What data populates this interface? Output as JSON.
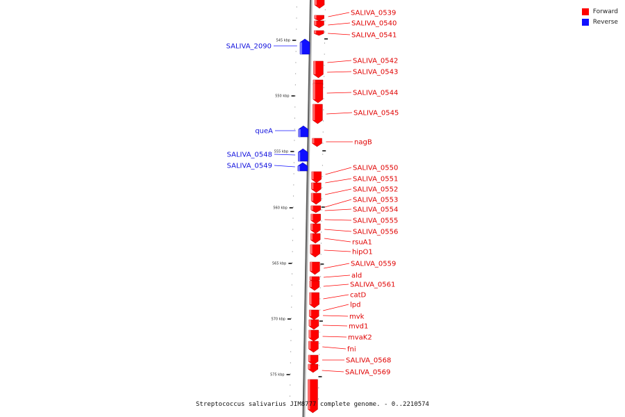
{
  "legend": {
    "forward": {
      "label": "Forward",
      "color": "#ff0000"
    },
    "reverse": {
      "label": "Reverse",
      "color": "#1010ff"
    }
  },
  "caption": "Streptococcus salivarius JIM8777 complete genome. - 0..2210574",
  "ticks": [
    "545 kbp",
    "550 kbp",
    "555 kbp",
    "560 kbp",
    "565 kbp",
    "570 kbp",
    "575 kbp"
  ],
  "reverse_genes": [
    "SALIVA_2090",
    "queA",
    "SALIVA_0548",
    "SALIVA_0549"
  ],
  "forward_genes": [
    "SALIVA_0539",
    "SALIVA_0540",
    "SALIVA_0541",
    "SALIVA_0542",
    "SALIVA_0543",
    "SALIVA_0544",
    "SALIVA_0545",
    "nagB",
    "SALIVA_0550",
    "SALIVA_0551",
    "SALIVA_0552",
    "SALIVA_0553",
    "SALIVA_0554",
    "SALIVA_0555",
    "SALIVA_0556",
    "rsuA1",
    "hipO1",
    "SALIVA_0559",
    "ald",
    "SALIVA_0561",
    "catD",
    "lpd",
    "mvk",
    "mvd1",
    "mvaK2",
    "fni",
    "SALIVA_0568",
    "SALIVA_0569"
  ]
}
